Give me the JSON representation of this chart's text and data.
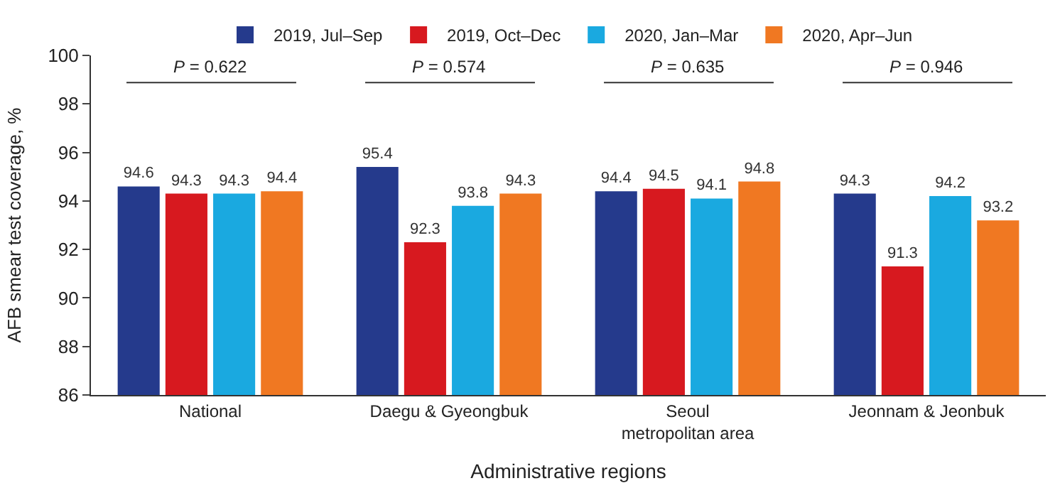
{
  "chart_data": {
    "type": "bar",
    "xlabel": "Administrative regions",
    "ylabel": "AFB smear test coverage, %",
    "categories": [
      "National",
      "Daegu & Gyeongbuk",
      "Seoul\nmetropolitan area",
      "Jeonnam & Jeonbuk"
    ],
    "series": [
      {
        "name": "2019, Jul–Sep",
        "color": "#253a8c",
        "values": [
          94.6,
          95.4,
          94.4,
          94.3
        ]
      },
      {
        "name": "2019, Oct–Dec",
        "color": "#d7191f",
        "values": [
          94.3,
          92.3,
          94.5,
          91.3
        ]
      },
      {
        "name": "2020, Jan–Mar",
        "color": "#1aa9e0",
        "values": [
          94.3,
          93.8,
          94.1,
          94.2
        ]
      },
      {
        "name": "2020, Apr–Jun",
        "color": "#f07822",
        "values": [
          94.4,
          94.3,
          94.8,
          93.2
        ]
      }
    ],
    "ylim": [
      86,
      100
    ],
    "yticks": [
      86,
      88,
      90,
      92,
      94,
      96,
      98,
      100
    ],
    "legend": "top",
    "data_labels": true,
    "annotations": [
      "P = 0.622",
      "P = 0.574",
      "P = 0.635",
      "P = 0.946"
    ]
  }
}
